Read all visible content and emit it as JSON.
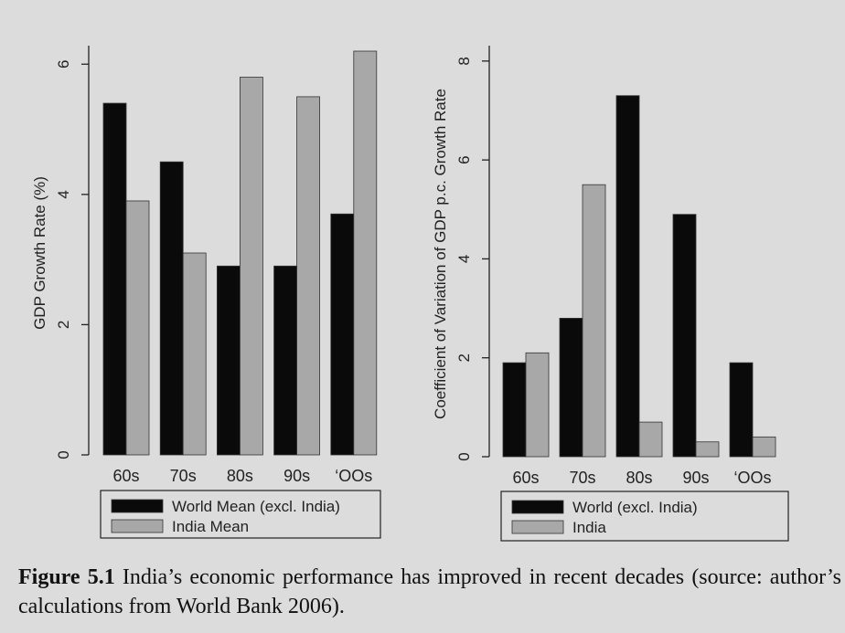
{
  "colors": {
    "background": "#dcdcdc",
    "world_bar": "#0a0a0a",
    "india_bar": "#a8a8a8",
    "axis": "#222222"
  },
  "chart_data": [
    {
      "type": "bar",
      "categories": [
        "60s",
        "70s",
        "80s",
        "90s",
        "‘OOs"
      ],
      "series": [
        {
          "name": "World Mean (excl. India)",
          "values": [
            5.4,
            4.5,
            2.9,
            2.9,
            3.7
          ],
          "color": "#0a0a0a"
        },
        {
          "name": "India Mean",
          "values": [
            3.9,
            3.1,
            5.8,
            5.5,
            6.2
          ],
          "color": "#a8a8a8"
        }
      ],
      "xlabel": "",
      "ylabel": "GDP Growth Rate (%)",
      "ylim": [
        0,
        6.2
      ],
      "yticks": [
        0,
        2,
        4,
        6
      ],
      "grid": false,
      "legend": "below"
    },
    {
      "type": "bar",
      "categories": [
        "60s",
        "70s",
        "80s",
        "90s",
        "‘OOs"
      ],
      "series": [
        {
          "name": "World (excl. India)",
          "values": [
            1.9,
            2.8,
            7.3,
            4.9,
            1.9
          ],
          "color": "#0a0a0a"
        },
        {
          "name": "India",
          "values": [
            2.1,
            5.5,
            0.7,
            0.3,
            0.4
          ],
          "color": "#a8a8a8"
        }
      ],
      "xlabel": "",
      "ylabel": "Coefficient of Variation of GDP p.c. Growth Rate",
      "ylim": [
        0,
        8.2
      ],
      "yticks": [
        0,
        2,
        4,
        6,
        8
      ],
      "grid": false,
      "legend": "below"
    }
  ],
  "caption": {
    "label": "Figure 5.1",
    "text": " India’s economic performance has improved in recent decades (source: author’s calculations from World Bank 2006)."
  }
}
